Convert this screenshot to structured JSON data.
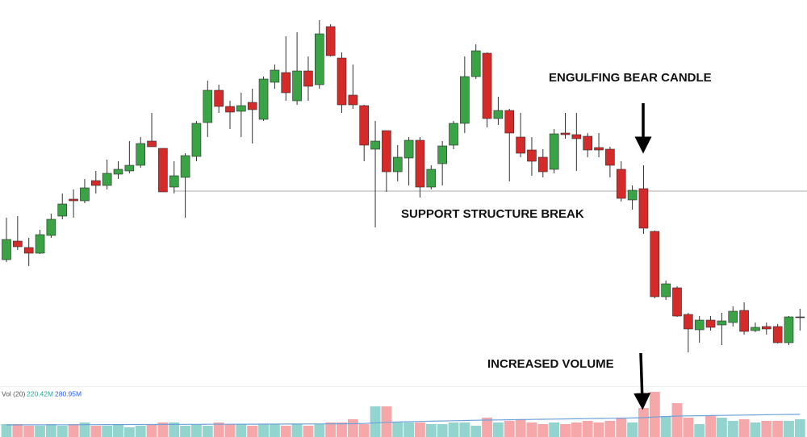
{
  "chart_data": {
    "type": "candlestick",
    "up_color": "#3aa346",
    "down_color": "#d42a2a",
    "up_volume_color": "#93d5ce",
    "down_volume_color": "#f5a7a9",
    "ma_color": "#6fa3dc",
    "support_color": "#bdbdbd",
    "ylim": [
      0,
      542
    ],
    "volume_ylim": [
      0,
      620
    ],
    "open": [
      220,
      243,
      235,
      228,
      250,
      274,
      295,
      293,
      318,
      312,
      326,
      330,
      337,
      367,
      358,
      310,
      322,
      348,
      390,
      430,
      410,
      404,
      415,
      394,
      440,
      452,
      417,
      454,
      437,
      509,
      470,
      424,
      411,
      357,
      380,
      329,
      346,
      368,
      310,
      339,
      362,
      389,
      447,
      476,
      395,
      405,
      372,
      356,
      347,
      332,
      377,
      375,
      373,
      359,
      357,
      332,
      294,
      308,
      255,
      174,
      185,
      152,
      133,
      145,
      139,
      142,
      157,
      132,
      137,
      137,
      117,
      149
    ],
    "high": [
      272,
      274,
      247,
      257,
      277,
      302,
      307,
      320,
      330,
      344,
      342,
      367,
      372,
      402,
      358,
      342,
      352,
      392,
      442,
      437,
      417,
      427,
      432,
      447,
      462,
      497,
      502,
      472,
      517,
      512,
      477,
      462,
      412,
      392,
      380,
      362,
      372,
      372,
      337,
      367,
      392,
      472,
      487,
      477,
      422,
      407,
      402,
      372,
      357,
      382,
      402,
      402,
      377,
      377,
      360,
      342,
      312,
      337,
      256,
      194,
      187,
      154,
      150,
      150,
      154,
      162,
      167,
      142,
      142,
      140,
      150,
      159
    ],
    "low": [
      217,
      232,
      212,
      227,
      247,
      270,
      272,
      290,
      302,
      307,
      320,
      327,
      334,
      360,
      304,
      302,
      272,
      342,
      372,
      402,
      382,
      372,
      364,
      392,
      432,
      417,
      412,
      417,
      432,
      472,
      402,
      407,
      342,
      260,
      304,
      317,
      312,
      297,
      307,
      312,
      357,
      377,
      444,
      384,
      387,
      317,
      347,
      324,
      322,
      327,
      370,
      330,
      347,
      347,
      322,
      292,
      282,
      252,
      172,
      170,
      149,
      105,
      117,
      132,
      114,
      137,
      127,
      130,
      127,
      116,
      114,
      132
    ],
    "close": [
      245,
      236,
      228,
      251,
      270,
      289,
      293,
      309,
      312,
      327,
      332,
      337,
      364,
      360,
      304,
      324,
      349,
      389,
      430,
      410,
      403,
      411,
      406,
      444,
      455,
      427,
      454,
      435,
      500,
      473,
      412,
      412,
      362,
      367,
      329,
      347,
      368,
      310,
      332,
      361,
      389,
      447,
      479,
      395,
      405,
      377,
      352,
      342,
      329,
      376,
      375,
      370,
      356,
      356,
      337,
      296,
      306,
      259,
      174,
      190,
      150,
      134,
      145,
      136,
      144,
      156,
      131,
      136,
      134,
      117,
      149,
      149
    ],
    "volume": [
      160,
      160,
      140,
      140,
      160,
      140,
      160,
      180,
      140,
      140,
      160,
      120,
      140,
      160,
      180,
      180,
      140,
      160,
      140,
      180,
      160,
      160,
      140,
      160,
      160,
      140,
      160,
      140,
      160,
      180,
      180,
      220,
      160,
      380,
      380,
      180,
      180,
      180,
      160,
      160,
      180,
      180,
      140,
      240,
      180,
      200,
      220,
      180,
      160,
      180,
      160,
      180,
      200,
      180,
      200,
      240,
      180,
      360,
      560,
      260,
      420,
      240,
      160,
      260,
      240,
      200,
      220,
      180,
      200,
      200,
      200,
      220.42
    ],
    "volume_ma": [
      150,
      150,
      151,
      151,
      152,
      152,
      152,
      153,
      153,
      154,
      154,
      155,
      155,
      155,
      156,
      156,
      157,
      157,
      158,
      158,
      158,
      159,
      159,
      160,
      160,
      161,
      161,
      162,
      162,
      163,
      164,
      165,
      168,
      175,
      182,
      186,
      190,
      193,
      196,
      199,
      202,
      205,
      208,
      210,
      212,
      214,
      216,
      218,
      220,
      222,
      224,
      226,
      228,
      230,
      232,
      234,
      236,
      240,
      248,
      254,
      260,
      262,
      264,
      266,
      268,
      270,
      272,
      274,
      276,
      278,
      280,
      280.95
    ],
    "volume_legend": {
      "label": "Vol (20)",
      "volume": "220.42M",
      "ma": "280.95M"
    },
    "support_level": 305,
    "annotations": [
      "ENGULFING BEAR CANDLE",
      "SUPPORT STRUCTURE BREAK",
      "INCREASED VOLUME"
    ]
  }
}
